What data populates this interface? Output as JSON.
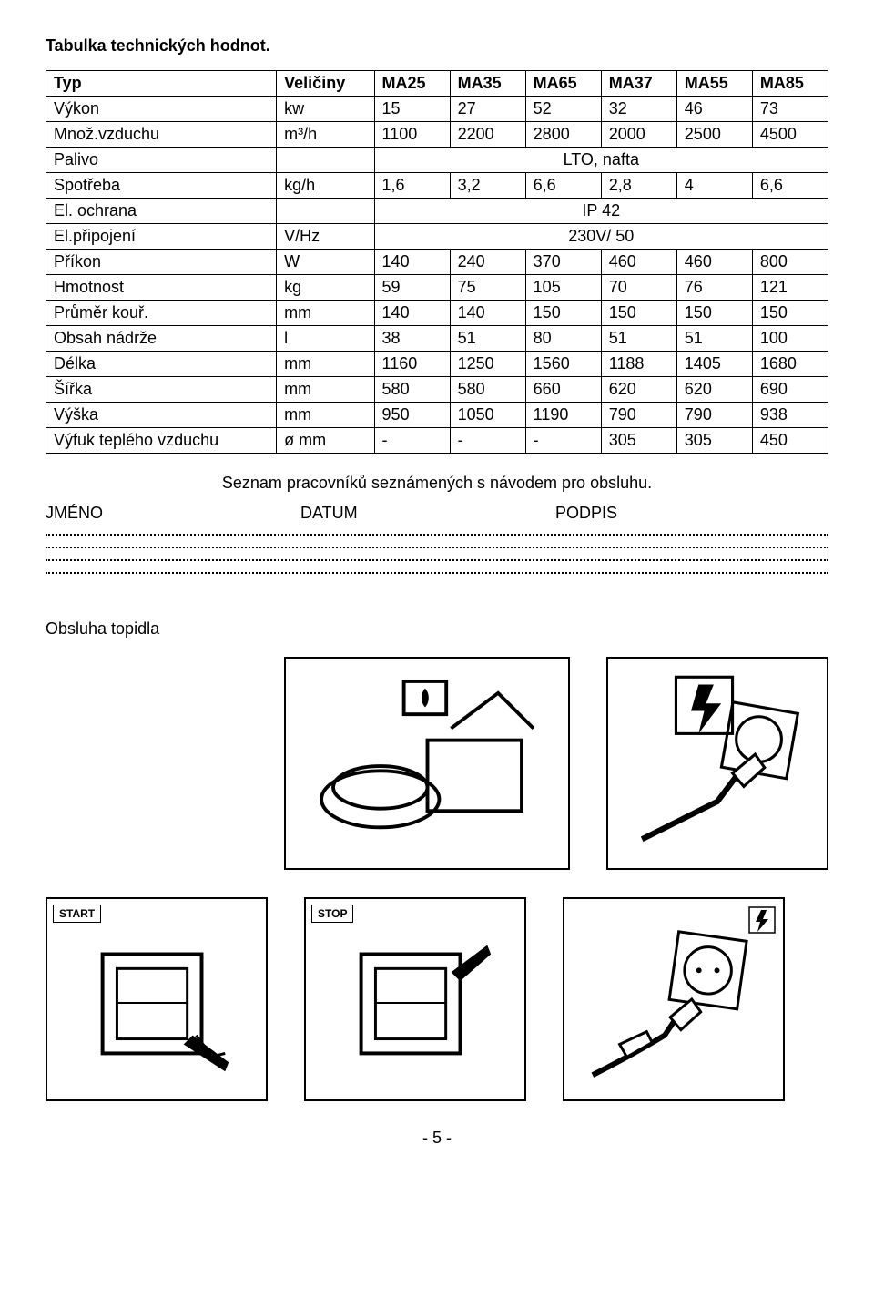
{
  "title": "Tabulka technických hodnot.",
  "table": {
    "header": [
      "Typ",
      "Veličiny",
      "MA25",
      "MA35",
      "MA65",
      "MA37",
      "MA55",
      "MA85"
    ],
    "rows": [
      {
        "label": "Výkon",
        "unit": "kw",
        "vals": [
          "15",
          "27",
          "52",
          "32",
          "46",
          "73"
        ]
      },
      {
        "label": "Množ.vzduchu",
        "unit": "m³/h",
        "vals": [
          "1100",
          "2200",
          "2800",
          "2000",
          "2500",
          "4500"
        ]
      },
      {
        "label": "Palivo",
        "unit": "",
        "span": "LTO, nafta"
      },
      {
        "label": "Spotřeba",
        "unit": "kg/h",
        "vals": [
          "1,6",
          "3,2",
          "6,6",
          "2,8",
          "4",
          "6,6"
        ]
      },
      {
        "label": "El. ochrana",
        "unit": "",
        "span": "IP 42"
      },
      {
        "label": "El.připojení",
        "unit": "V/Hz",
        "span": "230V/ 50"
      },
      {
        "label": "Příkon",
        "unit": "W",
        "vals": [
          "140",
          "240",
          "370",
          "460",
          "460",
          "800"
        ]
      },
      {
        "label": "Hmotnost",
        "unit": "kg",
        "vals": [
          "59",
          "75",
          "105",
          "70",
          "76",
          "121"
        ]
      },
      {
        "label": "Průměr kouř.",
        "unit": "mm",
        "vals": [
          "140",
          "140",
          "150",
          "150",
          "150",
          "150"
        ]
      },
      {
        "label": "Obsah nádrže",
        "unit": "l",
        "vals": [
          "38",
          "51",
          "80",
          "51",
          "51",
          "100"
        ]
      },
      {
        "label": "Délka",
        "unit": "mm",
        "vals": [
          "1160",
          "1250",
          "1560",
          "1188",
          "1405",
          "1680"
        ]
      },
      {
        "label": "Šířka",
        "unit": "mm",
        "vals": [
          "580",
          "580",
          "660",
          "620",
          "620",
          "690"
        ]
      },
      {
        "label": "Výška",
        "unit": "mm",
        "vals": [
          "950",
          "1050",
          "1190",
          "790",
          "790",
          "938"
        ]
      },
      {
        "label": "Výfuk teplého vzduchu",
        "unit": "ø mm",
        "vals": [
          "-",
          "-",
          "-",
          "305",
          "305",
          "450"
        ]
      }
    ]
  },
  "subtitle": "Seznam pracovníků seznámených s návodem pro obsluhu.",
  "sig_headers": {
    "col1": "JMÉNO",
    "col2": "DATUM",
    "col3": "PODPIS"
  },
  "obsluha": "Obsluha topidla",
  "badges": {
    "start": "START",
    "stop": "STOP"
  },
  "footer": "- 5 -",
  "colors": {
    "text": "#000000",
    "bg": "#ffffff",
    "border": "#000000"
  }
}
